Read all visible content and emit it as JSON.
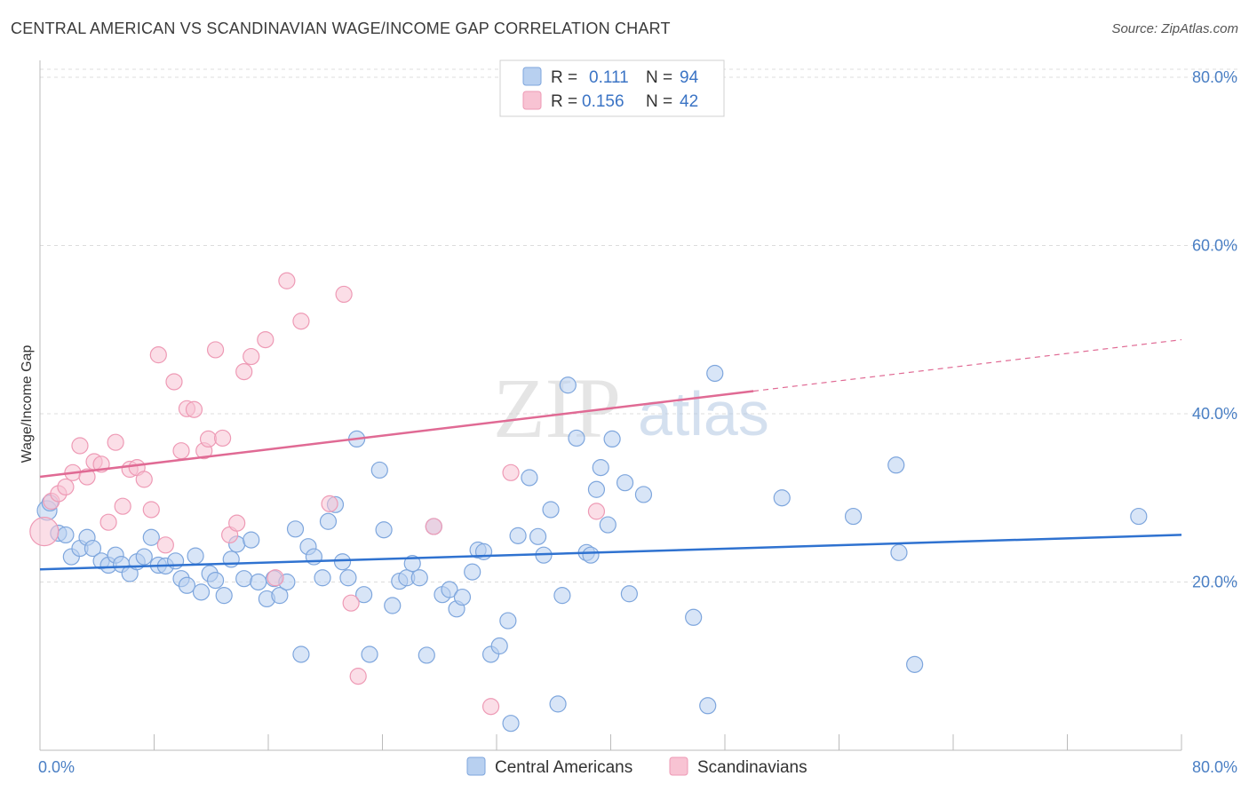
{
  "title": "CENTRAL AMERICAN VS SCANDINAVIAN WAGE/INCOME GAP CORRELATION CHART",
  "source": "Source: ZipAtlas.com",
  "watermark": {
    "zip": "ZIP",
    "atlas": "atlas"
  },
  "legend": {
    "r_label": "R =",
    "n_label": "N =",
    "rows": [
      {
        "r": "0.111",
        "n": "94"
      },
      {
        "r": "0.156",
        "n": "42"
      }
    ]
  },
  "colors": {
    "blue_fill": "#b8d0f0",
    "blue_stroke": "#7ea6dd",
    "blue_line": "#2f72d0",
    "pink_fill": "#f8c3d3",
    "pink_stroke": "#ee9ab5",
    "pink_line": "#e06a94",
    "tick": "#4a7fc4",
    "grid": "#dcdcdc"
  },
  "chart_data": {
    "type": "scatter",
    "title": "CENTRAL AMERICAN VS SCANDINAVIAN WAGE/INCOME GAP CORRELATION CHART",
    "xlabel": "",
    "ylabel": "Wage/Income Gap",
    "xlim": [
      0,
      80
    ],
    "ylim": [
      0,
      82
    ],
    "x_tick_labels": [
      "0.0%",
      "80.0%"
    ],
    "y_ticks": [
      20,
      40,
      60,
      80
    ],
    "y_tick_labels": [
      "20.0%",
      "40.0%",
      "60.0%",
      "80.0%"
    ],
    "grid": true,
    "legend_position": "top-center",
    "series": [
      {
        "name": "Central Americans",
        "r": 0.111,
        "n": 94,
        "trend": {
          "x0": 0,
          "y0": 21.5,
          "x1": 80,
          "y1": 25.6,
          "solid_to": 80
        },
        "points": [
          [
            0.5,
            28.5
          ],
          [
            1.3,
            25.8
          ],
          [
            2.2,
            23.0
          ],
          [
            2.8,
            24.0
          ],
          [
            3.3,
            25.3
          ],
          [
            3.7,
            24.0
          ],
          [
            4.3,
            22.5
          ],
          [
            4.8,
            22.0
          ],
          [
            5.3,
            23.2
          ],
          [
            5.7,
            22.1
          ],
          [
            6.3,
            21.0
          ],
          [
            6.8,
            22.4
          ],
          [
            7.3,
            23.0
          ],
          [
            7.8,
            25.3
          ],
          [
            8.3,
            22.0
          ],
          [
            8.8,
            21.9
          ],
          [
            9.5,
            22.5
          ],
          [
            9.9,
            20.4
          ],
          [
            10.3,
            19.6
          ],
          [
            10.9,
            23.1
          ],
          [
            11.3,
            18.8
          ],
          [
            11.9,
            21.0
          ],
          [
            12.3,
            20.2
          ],
          [
            12.9,
            18.4
          ],
          [
            13.4,
            22.7
          ],
          [
            13.8,
            24.5
          ],
          [
            14.8,
            25.0
          ],
          [
            14.3,
            20.4
          ],
          [
            15.3,
            20.0
          ],
          [
            15.9,
            18.0
          ],
          [
            16.4,
            20.4
          ],
          [
            16.8,
            18.4
          ],
          [
            17.3,
            20.0
          ],
          [
            17.9,
            26.3
          ],
          [
            18.3,
            11.4
          ],
          [
            18.8,
            24.2
          ],
          [
            19.2,
            23.0
          ],
          [
            19.8,
            20.5
          ],
          [
            20.2,
            27.2
          ],
          [
            20.7,
            29.2
          ],
          [
            21.2,
            22.4
          ],
          [
            21.6,
            20.5
          ],
          [
            22.2,
            37.0
          ],
          [
            22.7,
            18.5
          ],
          [
            23.1,
            11.4
          ],
          [
            23.8,
            33.3
          ],
          [
            24.1,
            26.2
          ],
          [
            24.7,
            17.2
          ],
          [
            25.2,
            20.1
          ],
          [
            25.7,
            20.5
          ],
          [
            26.1,
            22.2
          ],
          [
            26.6,
            20.5
          ],
          [
            27.1,
            11.3
          ],
          [
            27.6,
            26.6
          ],
          [
            28.2,
            18.5
          ],
          [
            28.7,
            19.1
          ],
          [
            29.2,
            16.8
          ],
          [
            29.6,
            18.2
          ],
          [
            30.3,
            21.2
          ],
          [
            30.7,
            23.8
          ],
          [
            31.1,
            23.6
          ],
          [
            31.6,
            11.4
          ],
          [
            32.2,
            12.4
          ],
          [
            32.8,
            15.4
          ],
          [
            33.0,
            3.2
          ],
          [
            33.5,
            25.5
          ],
          [
            34.3,
            32.4
          ],
          [
            34.9,
            25.4
          ],
          [
            35.3,
            23.2
          ],
          [
            35.8,
            28.6
          ],
          [
            36.3,
            5.5
          ],
          [
            36.6,
            18.4
          ],
          [
            37.0,
            43.4
          ],
          [
            37.6,
            37.1
          ],
          [
            38.3,
            23.5
          ],
          [
            38.6,
            23.2
          ],
          [
            39.0,
            31.0
          ],
          [
            39.3,
            33.6
          ],
          [
            39.8,
            26.8
          ],
          [
            40.1,
            37.0
          ],
          [
            41.3,
            18.6
          ],
          [
            41.0,
            31.8
          ],
          [
            42.3,
            30.4
          ],
          [
            45.8,
            15.8
          ],
          [
            46.8,
            5.3
          ],
          [
            47.3,
            44.8
          ],
          [
            52.0,
            30.0
          ],
          [
            57.0,
            27.8
          ],
          [
            60.0,
            33.9
          ],
          [
            60.2,
            23.5
          ],
          [
            61.3,
            10.2
          ],
          [
            77.0,
            27.8
          ],
          [
            0.7,
            29.4
          ],
          [
            1.8,
            25.6
          ]
        ]
      },
      {
        "name": "Scandinavians",
        "r": 0.156,
        "n": 42,
        "trend": {
          "x0": 0,
          "y0": 32.5,
          "x1": 80,
          "y1": 48.8,
          "solid_to": 50
        },
        "points": [
          [
            0.3,
            26.0
          ],
          [
            0.8,
            29.6
          ],
          [
            1.3,
            30.5
          ],
          [
            1.8,
            31.3
          ],
          [
            2.3,
            33.0
          ],
          [
            2.8,
            36.2
          ],
          [
            3.3,
            32.5
          ],
          [
            3.8,
            34.3
          ],
          [
            4.3,
            34.0
          ],
          [
            4.8,
            27.1
          ],
          [
            5.3,
            36.6
          ],
          [
            5.8,
            29.0
          ],
          [
            6.3,
            33.4
          ],
          [
            6.8,
            33.6
          ],
          [
            7.3,
            32.2
          ],
          [
            7.8,
            28.6
          ],
          [
            8.3,
            47.0
          ],
          [
            8.8,
            24.4
          ],
          [
            9.4,
            43.8
          ],
          [
            9.9,
            35.6
          ],
          [
            10.3,
            40.6
          ],
          [
            10.8,
            40.5
          ],
          [
            11.5,
            35.6
          ],
          [
            11.8,
            37.0
          ],
          [
            12.3,
            47.6
          ],
          [
            12.8,
            37.1
          ],
          [
            13.3,
            25.6
          ],
          [
            13.8,
            27.0
          ],
          [
            14.3,
            45.0
          ],
          [
            14.8,
            46.8
          ],
          [
            15.8,
            48.8
          ],
          [
            16.5,
            20.5
          ],
          [
            17.3,
            55.8
          ],
          [
            18.3,
            51.0
          ],
          [
            20.3,
            29.3
          ],
          [
            21.8,
            17.5
          ],
          [
            21.3,
            54.2
          ],
          [
            22.3,
            8.8
          ],
          [
            27.6,
            26.6
          ],
          [
            31.6,
            5.2
          ],
          [
            39.0,
            28.4
          ],
          [
            33.0,
            33.0
          ]
        ]
      }
    ]
  },
  "bottom_legend": [
    "Central Americans",
    "Scandinavians"
  ]
}
